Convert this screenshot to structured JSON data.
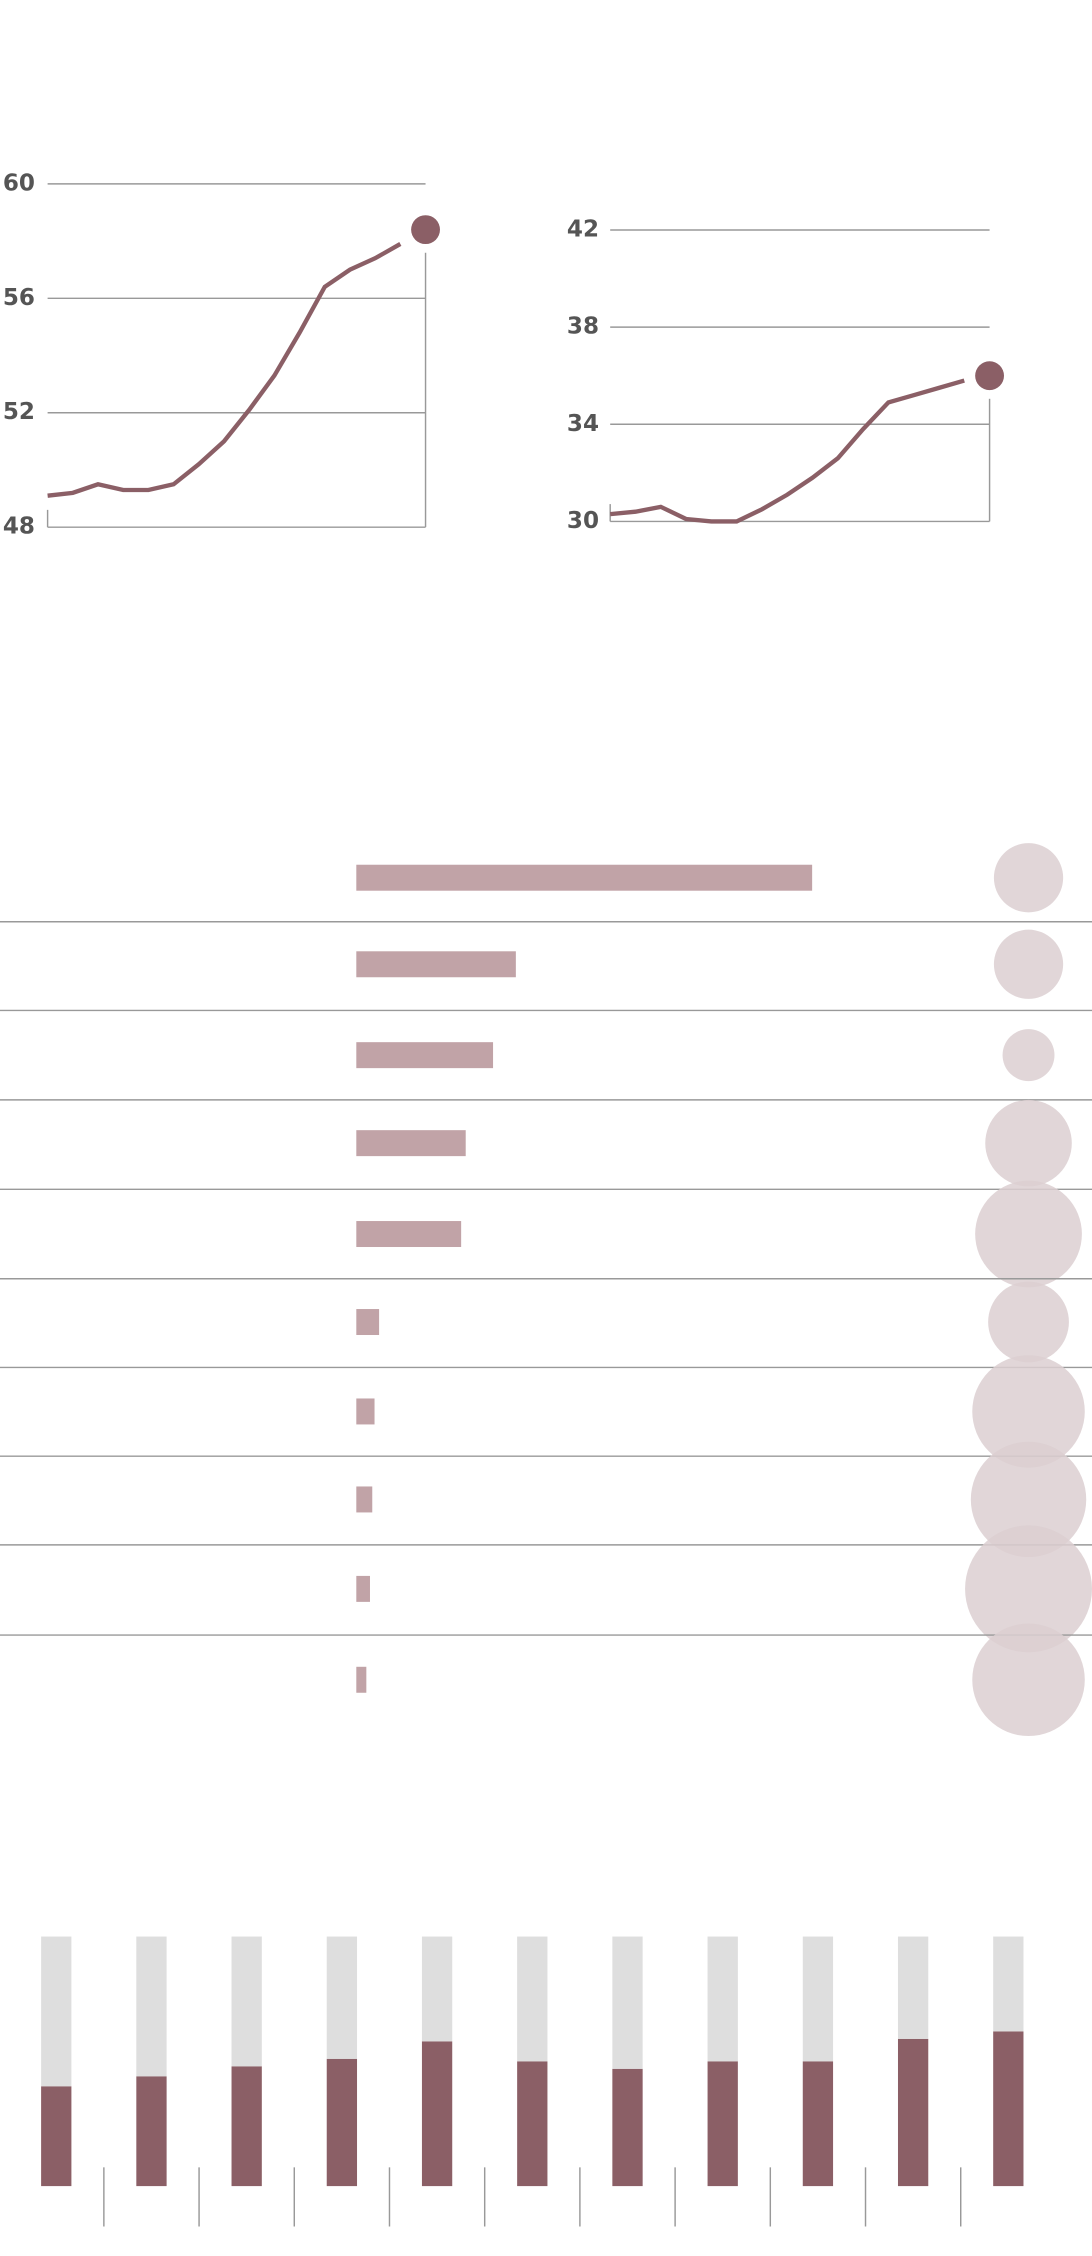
{
  "chart_data": [
    {
      "type": "line",
      "color": "#8b5f66",
      "values": [
        49.1,
        49.2,
        49.5,
        49.3,
        49.3,
        49.5,
        50.2,
        51.0,
        52.1,
        53.3,
        54.8,
        56.4,
        57.0,
        57.4,
        57.9,
        58.4
      ],
      "ylim": [
        48,
        60
      ],
      "yticks": [
        48,
        52,
        56,
        60
      ],
      "grid": true
    },
    {
      "type": "line",
      "color": "#8b5f66",
      "values": [
        30.3,
        30.4,
        30.6,
        30.1,
        30.0,
        30.0,
        30.5,
        31.1,
        31.8,
        32.6,
        33.8,
        34.9,
        35.2,
        35.5,
        35.8,
        36.0
      ],
      "ylim": [
        30,
        42
      ],
      "yticks": [
        30,
        34,
        38,
        42
      ],
      "grid": true
    },
    {
      "type": "barbubble",
      "color": "#c1a3a7",
      "bubble_color": "#dccfd1",
      "values": [
        100,
        35,
        30,
        24,
        23,
        5,
        4,
        3.5,
        3,
        2.2
      ],
      "xlim": [
        0,
        100
      ],
      "sizes": [
        24,
        24,
        18,
        30,
        37,
        28,
        39,
        40,
        44,
        39
      ]
    },
    {
      "type": "stacked_bar",
      "ylim": [
        0,
        100
      ],
      "series": [
        {
          "color": "#8b5f66",
          "values": [
            40,
            44,
            48,
            51,
            58,
            50,
            47,
            50,
            50,
            59,
            62
          ]
        },
        {
          "color": "#dedede",
          "values": [
            60,
            56,
            52,
            49,
            42,
            50,
            53,
            50,
            50,
            41,
            38
          ]
        }
      ]
    }
  ]
}
